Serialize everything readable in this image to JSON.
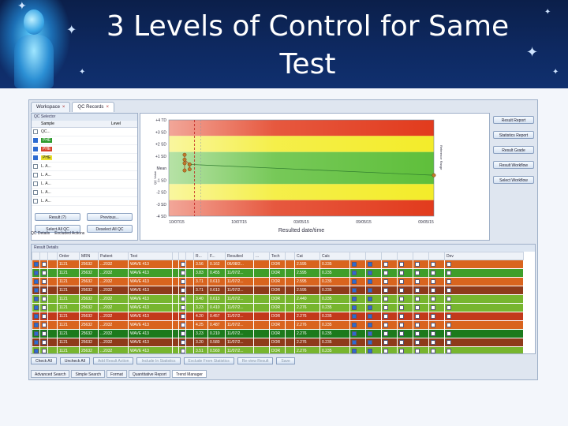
{
  "slide": {
    "title": "3 Levels of Control for Same Test"
  },
  "app": {
    "top_tabs": [
      {
        "label": "Workspace",
        "active": false
      },
      {
        "label": "QC Records",
        "active": true
      }
    ],
    "left_panel": {
      "title": "QC Selector",
      "columns": [
        "Sample",
        "Level"
      ],
      "rows": [
        {
          "text": "QC...",
          "state": "normal"
        },
        {
          "text": "PHE",
          "state": "hl"
        },
        {
          "text": "PHE",
          "state": "hl2"
        },
        {
          "text": "PHE",
          "state": "hl3"
        },
        {
          "text": "L. A...",
          "state": "normal"
        },
        {
          "text": "L. A...",
          "state": "normal"
        },
        {
          "text": "L. A...",
          "state": "normal"
        },
        {
          "text": "L. A...",
          "state": "normal"
        },
        {
          "text": "L. A...",
          "state": "normal"
        }
      ],
      "buttons_row1": [
        "Result (?)",
        "Previous..."
      ],
      "buttons_row2": [
        "Select All QC",
        "Deselect All QC"
      ],
      "subtabs": [
        "QC Details",
        "Excluded Actions"
      ]
    },
    "side_buttons": [
      "Result Report",
      "Statistics Report",
      "Result Grade",
      "Result Workflow",
      "Select Workflow"
    ],
    "chart_data": {
      "type": "line",
      "xlabel": "Resulted date/time",
      "x_ticks": [
        "10/07/15",
        "10/07/15",
        "03/05/15",
        "09/05/15",
        "09/05/15"
      ],
      "y_ticks": [
        "+4 TD",
        "+3 SD",
        "+2 SD",
        "+1 SD",
        "Mean",
        "-1 SD",
        "-2 SD",
        "-3 SD",
        "-4 SD"
      ],
      "bands": [
        "red",
        "yellow",
        "green",
        "green",
        "yellow",
        "red"
      ],
      "series": [
        {
          "points": [
            [
              0.0,
              1.1
            ],
            [
              0.0,
              0.4
            ],
            [
              0.0,
              -0.2
            ],
            [
              0.0,
              0.7
            ],
            [
              0.02,
              0.3
            ],
            [
              0.02,
              -0.1
            ]
          ]
        },
        {
          "points": [
            [
              0.02,
              0.3
            ],
            [
              1.0,
              -0.6
            ]
          ]
        }
      ],
      "labels": {
        "left_vertical": "QC Value",
        "right_vertical": "Reference Range"
      }
    },
    "grid": {
      "title": "Result Details",
      "headers": [
        "",
        "",
        "",
        "Order",
        "MRN",
        "Patient",
        "Test",
        "",
        "",
        "",
        "R...",
        "F...",
        "Resulted",
        "...",
        "Tech",
        "",
        "Cat",
        "Calc",
        "",
        "",
        "",
        "",
        "",
        "",
        "Dev"
      ],
      "rows": [
        {
          "color": "orange",
          "order": "1121",
          "mrn": "25632",
          "patient": "...2032",
          "test": "WAVE 413",
          "r": "3.56",
          "f": "0.162",
          "resulted": "06/08/2...",
          "tech": "DOR",
          "cat": "2.595",
          "calc": "0.235"
        },
        {
          "color": "green",
          "order": "1121",
          "mrn": "25632",
          "patient": "...2032",
          "test": "WAVE 413",
          "r": "3.83",
          "f": "0.455",
          "resulted": "11/07/2...",
          "tech": "DOR",
          "cat": "2.595",
          "calc": "0.235"
        },
        {
          "color": "orange",
          "order": "1121",
          "mrn": "25632",
          "patient": "...2032",
          "test": "WAVE 413",
          "r": "3.71",
          "f": "0.613",
          "resulted": "11/07/2...",
          "tech": "DOR",
          "cat": "2.595",
          "calc": "0.235"
        },
        {
          "color": "brown",
          "order": "1121",
          "mrn": "25632",
          "patient": "...2032",
          "test": "WAVE 413",
          "r": "3.71",
          "f": "0.613",
          "resulted": "11/07/2...",
          "tech": "DOR",
          "cat": "2.595",
          "calc": "0.235"
        },
        {
          "color": "lightgreen",
          "order": "1121",
          "mrn": "25632",
          "patient": "...2032",
          "test": "WAVE 413",
          "r": "3.40",
          "f": "0.613",
          "resulted": "11/07/2...",
          "tech": "DOR",
          "cat": "2.440",
          "calc": "0.235"
        },
        {
          "color": "lightgreen",
          "order": "1121",
          "mrn": "25632",
          "patient": "...2032",
          "test": "WAVE 413",
          "r": "3.23",
          "f": "0.410",
          "resulted": "11/07/2...",
          "tech": "DOR",
          "cat": "2.276",
          "calc": "0.235"
        },
        {
          "color": "red",
          "order": "1121",
          "mrn": "25632",
          "patient": "...2032",
          "test": "WAVE 413",
          "r": "4.20",
          "f": "0.457",
          "resulted": "11/07/2...",
          "tech": "DOR",
          "cat": "2.276",
          "calc": "0.235"
        },
        {
          "color": "orange",
          "order": "1121",
          "mrn": "25632",
          "patient": "...2032",
          "test": "WAVE 413",
          "r": "4.25",
          "f": "0.487",
          "resulted": "11/07/2...",
          "tech": "DOR",
          "cat": "2.276",
          "calc": "0.235"
        },
        {
          "color": "darkgreen",
          "order": "1121",
          "mrn": "25632",
          "patient": "...2032",
          "test": "WAVE 413",
          "r": "3.23",
          "f": "0.210",
          "resulted": "11/07/2...",
          "tech": "DOR",
          "cat": "2.276",
          "calc": "0.235"
        },
        {
          "color": "brown",
          "order": "1121",
          "mrn": "25632",
          "patient": "...2032",
          "test": "WAVE 413",
          "r": "3.20",
          "f": "0.580",
          "resulted": "11/07/2...",
          "tech": "DOR",
          "cat": "2.276",
          "calc": "0.235"
        },
        {
          "color": "lightgreen",
          "order": "1121",
          "mrn": "25632",
          "patient": "...2032",
          "test": "WAVE 413",
          "r": "3.51",
          "f": "0.560",
          "resulted": "11/07/2...",
          "tech": "DOR",
          "cat": "2.276",
          "calc": "0.235"
        }
      ]
    },
    "bottom_toolbar": [
      {
        "label": "Check All",
        "dim": false
      },
      {
        "label": "Uncheck All",
        "dim": false
      },
      {
        "label": "Add Result Action",
        "dim": true
      },
      {
        "label": "Include In Statistics",
        "dim": true
      },
      {
        "label": "Exclude From Statistics",
        "dim": true
      },
      {
        "label": "Re-view Result",
        "dim": true
      },
      {
        "label": "Save",
        "dim": true
      }
    ],
    "bottom_tabs": [
      {
        "label": "Advanced Search",
        "active": false
      },
      {
        "label": "Simple Search",
        "active": false
      },
      {
        "label": "Format",
        "active": false
      },
      {
        "label": "Quantitative Report",
        "active": false
      },
      {
        "label": "Trend Manager",
        "active": true
      }
    ]
  },
  "colors": {
    "header_bg": "#0e2a63",
    "accent": "#2d6bd1"
  }
}
